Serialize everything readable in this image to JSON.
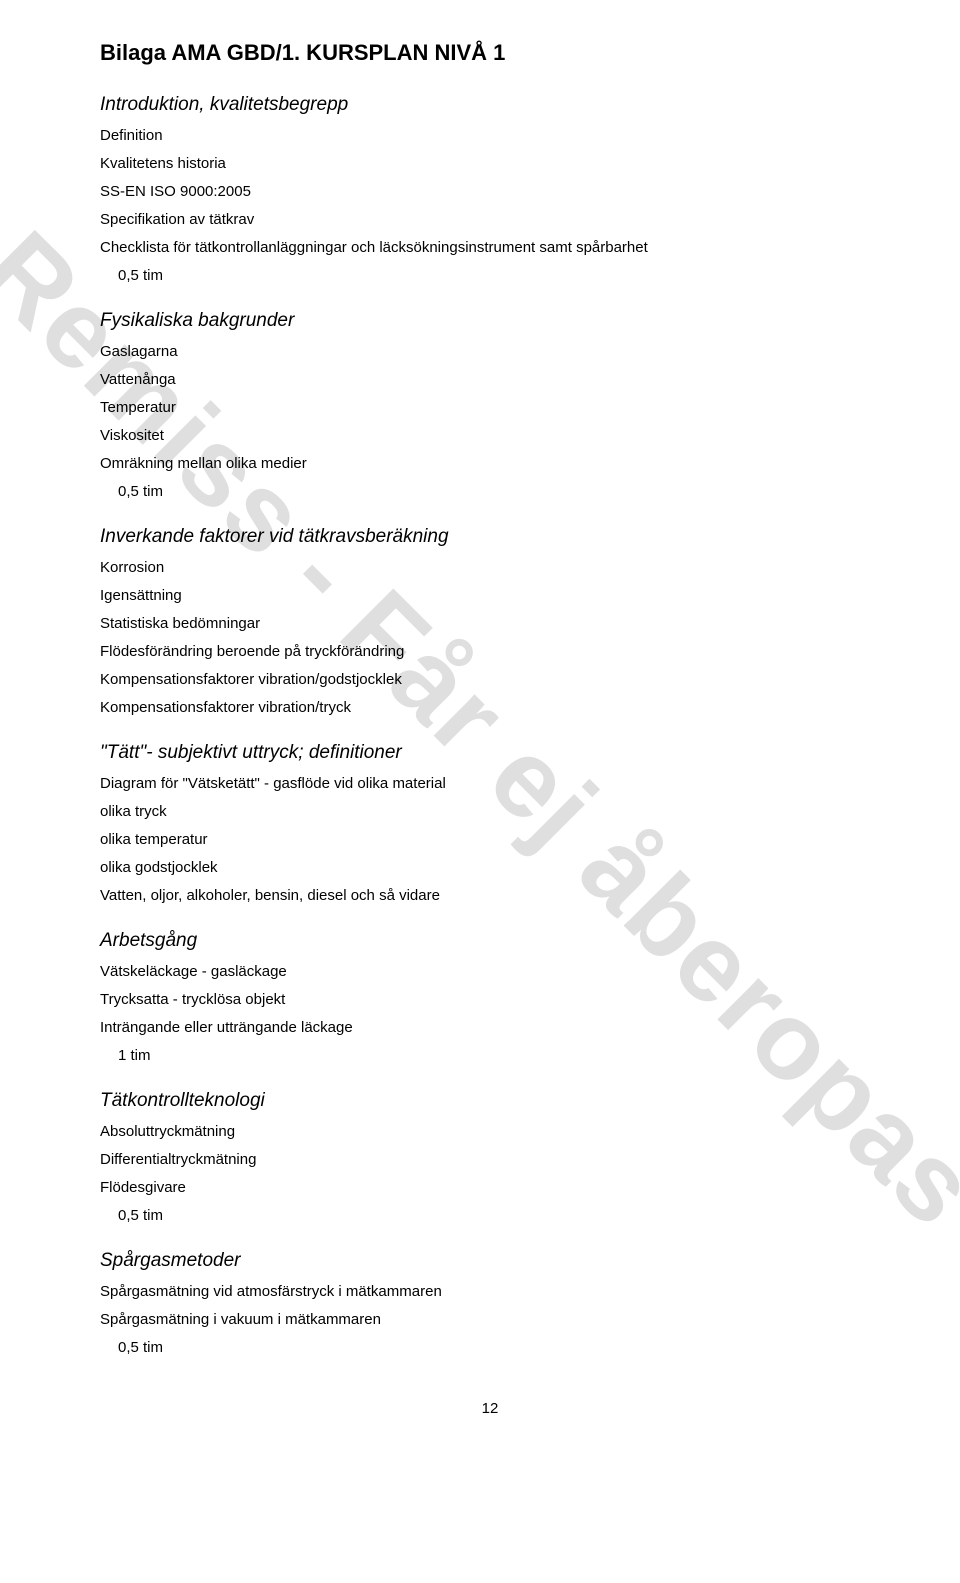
{
  "watermark": "Remiss - Får ej åberopas",
  "main_title": "Bilaga AMA GBD/1. KURSPLAN NIVÅ 1",
  "sections": {
    "intro": {
      "heading": "Introduktion, kvalitetsbegrepp",
      "items": [
        "Definition",
        "Kvalitetens historia",
        "SS-EN ISO 9000:2005",
        "Specifikation av tätkrav",
        "Checklista för tätkontrollanläggningar och läcksökningsinstrument samt spårbarhet"
      ],
      "time": "0,5 tim"
    },
    "fys": {
      "heading": "Fysikaliska bakgrunder",
      "items": [
        "Gaslagarna",
        "Vattenånga",
        "Temperatur",
        "Viskositet",
        "Omräkning mellan olika medier"
      ],
      "time": "0,5 tim"
    },
    "inv": {
      "heading": "Inverkande faktorer vid tätkravsberäkning",
      "items": [
        "Korrosion",
        "Igensättning",
        "Statistiska bedömningar",
        "Flödesförändring beroende på tryckförändring",
        "Kompensationsfaktorer vibration/godstjocklek",
        "Kompensationsfaktorer vibration/tryck"
      ]
    },
    "tatt": {
      "heading": "\"Tätt\"- subjektivt uttryck; definitioner",
      "items": [
        "Diagram för \"Vätsketätt\" - gasflöde vid olika material",
        "olika tryck",
        "olika temperatur",
        "olika godstjocklek",
        "Vatten, oljor, alkoholer, bensin, diesel och så vidare"
      ]
    },
    "arb": {
      "heading": "Arbetsgång",
      "items": [
        "Vätskeläckage - gasläckage",
        "Trycksatta - trycklösa objekt",
        "Inträngande eller utträngande läckage"
      ],
      "time": "1 tim"
    },
    "tat": {
      "heading": "Tätkontrollteknologi",
      "items": [
        "Absoluttryckmätning",
        "Differentialtryckmätning",
        "Flödesgivare"
      ],
      "time": "0,5 tim"
    },
    "spar": {
      "heading": "Spårgasmetoder",
      "items": [
        "Spårgasmätning vid atmosfärstryck i mätkammaren",
        "Spårgasmätning i vakuum i mätkammaren"
      ],
      "time": "0,5 tim"
    }
  },
  "page_number": "12",
  "colors": {
    "text": "#000000",
    "background": "#ffffff",
    "watermark": "rgba(128,128,128,0.25)"
  }
}
